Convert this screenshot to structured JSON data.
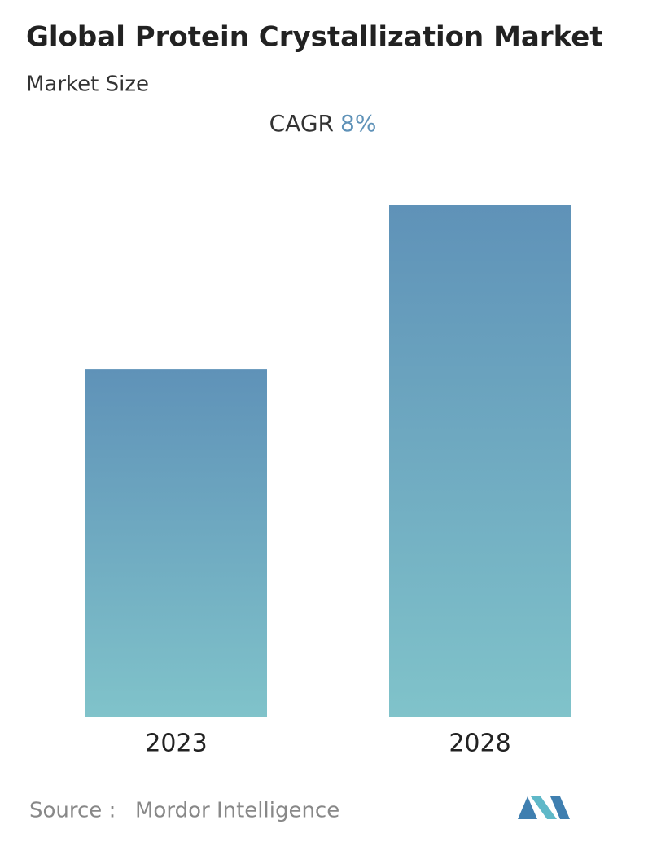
{
  "chart_data": {
    "type": "bar",
    "title": "Global Protein Crystallization Market",
    "subtitle": "Market Size",
    "cagr_label": "CAGR",
    "cagr_value": "8%",
    "categories": [
      "2023",
      "2028"
    ],
    "values": [
      1,
      1.47
    ],
    "color": [
      "#5f92b8",
      "#80c3ca"
    ],
    "ylim": [
      0,
      1.47
    ],
    "source_label": "Source :",
    "source": "Mordor Intelligence"
  }
}
